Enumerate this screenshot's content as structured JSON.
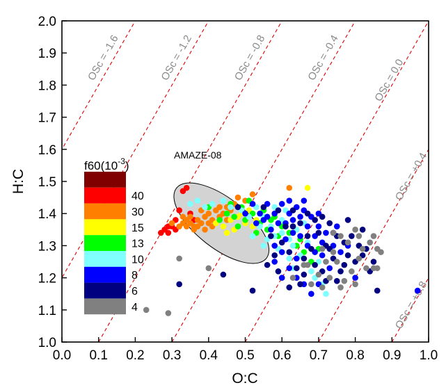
{
  "chart_data": {
    "type": "scatter",
    "title": "",
    "xlabel": "O:C",
    "ylabel": "H:C",
    "xlim": [
      0.0,
      1.0
    ],
    "ylim": [
      1.0,
      2.0
    ],
    "xticks": [
      "0.0",
      "0.1",
      "0.2",
      "0.3",
      "0.4",
      "0.5",
      "0.6",
      "0.7",
      "0.8",
      "0.9",
      "1.0"
    ],
    "yticks": [
      "1.0",
      "1.1",
      "1.2",
      "1.3",
      "1.4",
      "1.5",
      "1.6",
      "1.7",
      "1.8",
      "1.9",
      "2.0"
    ],
    "xtick_values": [
      0.0,
      0.1,
      0.2,
      0.3,
      0.4,
      0.5,
      0.6,
      0.7,
      0.8,
      0.9,
      1.0
    ],
    "ytick_values": [
      1.0,
      1.1,
      1.2,
      1.3,
      1.4,
      1.5,
      1.6,
      1.7,
      1.8,
      1.9,
      2.0
    ],
    "grid": false,
    "osc_lines": {
      "color": "#e00000",
      "style": "dashed",
      "relation": "H:C = 2 * O:C - OSc",
      "values": [
        -1.6,
        -1.2,
        -0.8,
        -0.4,
        0.0,
        0.4,
        0.8
      ],
      "labels": [
        "OSc = -1.6",
        "OSc = -1.2",
        "OSc = -0.8",
        "OSc = -0.4",
        "OSc = 0.0",
        "OSc = +0.4",
        "OSc = +0.8"
      ],
      "label_color": "#8a8a8a"
    },
    "ellipse": {
      "label": "AMAZE-08",
      "center": [
        0.435,
        1.37
      ],
      "fill": "#d3d3d3",
      "stroke": "#000000"
    },
    "legend": {
      "title": "f60(10",
      "title_sup": "-3",
      "title_end": ")",
      "placement": "left",
      "bins": [
        {
          "label": "",
          "color": "#800000"
        },
        {
          "label": "40",
          "color": "#ff0000"
        },
        {
          "label": "30",
          "color": "#ff8000"
        },
        {
          "label": "15",
          "color": "#ffff00"
        },
        {
          "label": "13",
          "color": "#00ff00"
        },
        {
          "label": "10",
          "color": "#80ffff"
        },
        {
          "label": "8",
          "color": "#0000ff"
        },
        {
          "label": "6",
          "color": "#000080"
        },
        {
          "label": "4",
          "color": "#808080"
        }
      ]
    },
    "series": [
      {
        "color": "#ff0000",
        "points": [
          [
            0.27,
            1.34
          ],
          [
            0.28,
            1.35
          ],
          [
            0.29,
            1.34
          ],
          [
            0.3,
            1.36
          ],
          [
            0.31,
            1.38
          ],
          [
            0.32,
            1.41
          ],
          [
            0.33,
            1.47
          ],
          [
            0.34,
            1.48
          ],
          [
            0.35,
            1.4
          ],
          [
            0.36,
            1.38
          ],
          [
            0.29,
            1.36
          ],
          [
            0.31,
            1.35
          ]
        ]
      },
      {
        "color": "#ff8000",
        "points": [
          [
            0.3,
            1.37
          ],
          [
            0.32,
            1.36
          ],
          [
            0.33,
            1.37
          ],
          [
            0.34,
            1.38
          ],
          [
            0.35,
            1.37
          ],
          [
            0.36,
            1.36
          ],
          [
            0.37,
            1.38
          ],
          [
            0.38,
            1.37
          ],
          [
            0.39,
            1.39
          ],
          [
            0.4,
            1.4
          ],
          [
            0.41,
            1.38
          ],
          [
            0.42,
            1.41
          ],
          [
            0.43,
            1.39
          ],
          [
            0.44,
            1.4
          ],
          [
            0.45,
            1.42
          ],
          [
            0.46,
            1.41
          ],
          [
            0.47,
            1.43
          ],
          [
            0.48,
            1.45
          ],
          [
            0.5,
            1.44
          ],
          [
            0.52,
            1.46
          ],
          [
            0.35,
            1.39
          ],
          [
            0.37,
            1.36
          ],
          [
            0.39,
            1.35
          ],
          [
            0.41,
            1.36
          ],
          [
            0.43,
            1.42
          ],
          [
            0.38,
            1.41
          ],
          [
            0.36,
            1.35
          ],
          [
            0.34,
            1.36
          ],
          [
            0.62,
            1.48
          ],
          [
            0.4,
            1.37
          ],
          [
            0.33,
            1.39
          ],
          [
            0.45,
            1.38
          ]
        ]
      },
      {
        "color": "#ffff00",
        "points": [
          [
            0.42,
            1.37
          ],
          [
            0.44,
            1.36
          ],
          [
            0.46,
            1.38
          ],
          [
            0.48,
            1.39
          ],
          [
            0.5,
            1.37
          ],
          [
            0.49,
            1.4
          ],
          [
            0.47,
            1.35
          ],
          [
            0.51,
            1.41
          ],
          [
            0.53,
            1.38
          ],
          [
            0.67,
            1.48
          ],
          [
            0.45,
            1.34
          ],
          [
            0.52,
            1.36
          ]
        ]
      },
      {
        "color": "#00ff00",
        "points": [
          [
            0.4,
            1.42
          ],
          [
            0.43,
            1.38
          ],
          [
            0.45,
            1.4
          ],
          [
            0.47,
            1.39
          ],
          [
            0.49,
            1.42
          ],
          [
            0.5,
            1.38
          ],
          [
            0.52,
            1.4
          ],
          [
            0.54,
            1.37
          ],
          [
            0.55,
            1.41
          ],
          [
            0.57,
            1.38
          ],
          [
            0.58,
            1.39
          ],
          [
            0.6,
            1.36
          ],
          [
            0.62,
            1.34
          ],
          [
            0.64,
            1.3
          ],
          [
            0.66,
            1.28
          ],
          [
            0.68,
            1.25
          ],
          [
            0.46,
            1.43
          ],
          [
            0.56,
            1.35
          ],
          [
            0.59,
            1.33
          ],
          [
            0.63,
            1.36
          ],
          [
            0.65,
            1.32
          ],
          [
            0.51,
            1.44
          ],
          [
            0.48,
            1.36
          ],
          [
            0.53,
            1.34
          ],
          [
            0.7,
            1.29
          ]
        ]
      },
      {
        "color": "#80ffff",
        "points": [
          [
            0.35,
            1.43
          ],
          [
            0.37,
            1.44
          ],
          [
            0.39,
            1.42
          ],
          [
            0.41,
            1.43
          ],
          [
            0.44,
            1.44
          ],
          [
            0.46,
            1.42
          ],
          [
            0.49,
            1.41
          ],
          [
            0.51,
            1.39
          ],
          [
            0.53,
            1.42
          ],
          [
            0.55,
            1.39
          ],
          [
            0.57,
            1.36
          ],
          [
            0.58,
            1.33
          ],
          [
            0.6,
            1.34
          ],
          [
            0.62,
            1.32
          ],
          [
            0.63,
            1.3
          ],
          [
            0.65,
            1.27
          ],
          [
            0.66,
            1.24
          ],
          [
            0.68,
            1.22
          ],
          [
            0.69,
            1.2
          ],
          [
            0.71,
            1.18
          ],
          [
            0.6,
            1.38
          ],
          [
            0.56,
            1.32
          ],
          [
            0.64,
            1.35
          ],
          [
            0.67,
            1.31
          ],
          [
            0.59,
            1.29
          ],
          [
            0.62,
            1.26
          ],
          [
            0.54,
            1.36
          ],
          [
            0.52,
            1.33
          ],
          [
            0.61,
            1.41
          ],
          [
            0.66,
            1.37
          ],
          [
            0.7,
            1.25
          ],
          [
            0.72,
            1.15
          ],
          [
            0.58,
            1.42
          ],
          [
            0.63,
            1.23
          ],
          [
            0.55,
            1.3
          ]
        ]
      },
      {
        "color": "#0000ff",
        "points": [
          [
            0.5,
            1.4
          ],
          [
            0.52,
            1.43
          ],
          [
            0.54,
            1.4
          ],
          [
            0.56,
            1.43
          ],
          [
            0.58,
            1.4
          ],
          [
            0.6,
            1.43
          ],
          [
            0.61,
            1.37
          ],
          [
            0.62,
            1.4
          ],
          [
            0.63,
            1.38
          ],
          [
            0.64,
            1.42
          ],
          [
            0.65,
            1.39
          ],
          [
            0.66,
            1.41
          ],
          [
            0.67,
            1.36
          ],
          [
            0.68,
            1.39
          ],
          [
            0.69,
            1.33
          ],
          [
            0.7,
            1.36
          ],
          [
            0.71,
            1.31
          ],
          [
            0.72,
            1.34
          ],
          [
            0.74,
            1.3
          ],
          [
            0.76,
            1.28
          ],
          [
            0.78,
            1.3
          ],
          [
            0.58,
            1.3
          ],
          [
            0.6,
            1.28
          ],
          [
            0.62,
            1.23
          ],
          [
            0.64,
            1.2
          ],
          [
            0.66,
            1.18
          ],
          [
            0.68,
            1.15
          ],
          [
            0.7,
            1.18
          ],
          [
            0.57,
            1.35
          ],
          [
            0.59,
            1.37
          ],
          [
            0.61,
            1.32
          ],
          [
            0.63,
            1.34
          ],
          [
            0.65,
            1.33
          ],
          [
            0.67,
            1.3
          ],
          [
            0.69,
            1.28
          ],
          [
            0.71,
            1.27
          ],
          [
            0.55,
            1.38
          ],
          [
            0.53,
            1.37
          ],
          [
            0.6,
            1.2
          ],
          [
            0.64,
            1.26
          ],
          [
            0.73,
            1.23
          ],
          [
            0.8,
            1.2
          ],
          [
            0.97,
            1.16
          ],
          [
            0.75,
            1.36
          ],
          [
            0.58,
            1.25
          ],
          [
            0.56,
            1.39
          ],
          [
            0.62,
            1.44
          ],
          [
            0.66,
            1.44
          ],
          [
            0.7,
            1.4
          ]
        ]
      },
      {
        "color": "#000080",
        "points": [
          [
            0.44,
            1.21
          ],
          [
            0.48,
            1.42
          ],
          [
            0.55,
            1.42
          ],
          [
            0.59,
            1.41
          ],
          [
            0.63,
            1.41
          ],
          [
            0.65,
            1.37
          ],
          [
            0.67,
            1.4
          ],
          [
            0.69,
            1.38
          ],
          [
            0.71,
            1.39
          ],
          [
            0.73,
            1.37
          ],
          [
            0.75,
            1.33
          ],
          [
            0.77,
            1.31
          ],
          [
            0.78,
            1.27
          ],
          [
            0.8,
            1.25
          ],
          [
            0.82,
            1.27
          ],
          [
            0.84,
            1.22
          ],
          [
            0.86,
            1.16
          ],
          [
            0.7,
            1.34
          ],
          [
            0.72,
            1.3
          ],
          [
            0.74,
            1.26
          ],
          [
            0.76,
            1.22
          ],
          [
            0.68,
            1.29
          ],
          [
            0.66,
            1.26
          ],
          [
            0.64,
            1.23
          ],
          [
            0.62,
            1.28
          ],
          [
            0.6,
            1.31
          ],
          [
            0.58,
            1.27
          ],
          [
            0.56,
            1.24
          ],
          [
            0.52,
            1.16
          ],
          [
            0.62,
            1.17
          ],
          [
            0.72,
            1.19
          ],
          [
            0.79,
            1.33
          ],
          [
            0.81,
            1.3
          ],
          [
            0.83,
            1.29
          ],
          [
            0.85,
            1.25
          ],
          [
            0.77,
            1.24
          ],
          [
            0.75,
            1.19
          ],
          [
            0.73,
            1.29
          ],
          [
            0.66,
            1.21
          ],
          [
            0.61,
            1.36
          ],
          [
            0.57,
            1.33
          ],
          [
            0.69,
            1.24
          ],
          [
            0.71,
            1.22
          ],
          [
            0.78,
            1.38
          ],
          [
            0.63,
            1.36
          ],
          [
            0.67,
            1.33
          ],
          [
            0.74,
            1.34
          ],
          [
            0.65,
            1.18
          ],
          [
            0.59,
            1.22
          ],
          [
            0.32,
            1.18
          ],
          [
            0.82,
            1.35
          ]
        ]
      },
      {
        "color": "#808080",
        "points": [
          [
            0.23,
            1.1
          ],
          [
            0.29,
            1.09
          ],
          [
            0.32,
            1.26
          ],
          [
            0.4,
            1.23
          ],
          [
            0.63,
            1.2
          ],
          [
            0.67,
            1.24
          ],
          [
            0.7,
            1.21
          ],
          [
            0.72,
            1.25
          ],
          [
            0.74,
            1.28
          ],
          [
            0.76,
            1.33
          ],
          [
            0.78,
            1.31
          ],
          [
            0.8,
            1.35
          ],
          [
            0.82,
            1.29
          ],
          [
            0.84,
            1.31
          ],
          [
            0.86,
            1.29
          ],
          [
            0.87,
            1.28
          ],
          [
            0.83,
            1.23
          ],
          [
            0.79,
            1.22
          ],
          [
            0.75,
            1.25
          ],
          [
            0.71,
            1.29
          ],
          [
            0.73,
            1.2
          ],
          [
            0.77,
            1.19
          ],
          [
            0.81,
            1.26
          ],
          [
            0.85,
            1.23
          ],
          [
            0.68,
            1.18
          ],
          [
            0.66,
            1.24
          ],
          [
            0.85,
            1.33
          ],
          [
            0.8,
            1.18
          ],
          [
            0.76,
            1.17
          ],
          [
            0.81,
            1.33
          ],
          [
            0.74,
            1.34
          ],
          [
            0.86,
            1.23
          ],
          [
            0.71,
            1.17
          ]
        ]
      }
    ]
  }
}
